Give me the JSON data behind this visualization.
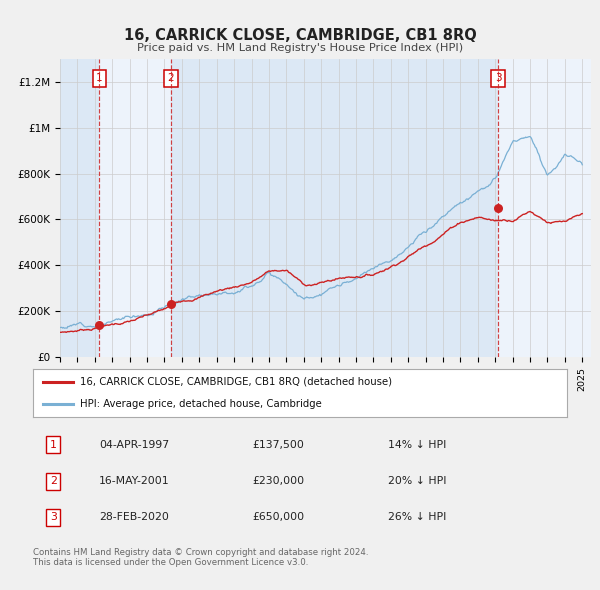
{
  "title": "16, CARRICK CLOSE, CAMBRIDGE, CB1 8RQ",
  "subtitle": "Price paid vs. HM Land Registry's House Price Index (HPI)",
  "hpi_color": "#7ab0d4",
  "price_color": "#cc2222",
  "xmin": 1995.0,
  "xmax": 2025.5,
  "ymin": 0,
  "ymax": 1300000,
  "yticks": [
    0,
    200000,
    400000,
    600000,
    800000,
    1000000,
    1200000
  ],
  "ytick_labels": [
    "£0",
    "£200K",
    "£400K",
    "£600K",
    "£800K",
    "£1M",
    "£1.2M"
  ],
  "transactions": [
    {
      "num": 1,
      "date_x": 1997.26,
      "price": 137500,
      "label": "1"
    },
    {
      "num": 2,
      "date_x": 2001.37,
      "price": 230000,
      "label": "2"
    },
    {
      "num": 3,
      "date_x": 2020.16,
      "price": 650000,
      "label": "3"
    }
  ],
  "table_rows": [
    {
      "num": 1,
      "date": "04-APR-1997",
      "price": "£137,500",
      "hpi_note": "14% ↓ HPI"
    },
    {
      "num": 2,
      "date": "16-MAY-2001",
      "price": "£230,000",
      "hpi_note": "20% ↓ HPI"
    },
    {
      "num": 3,
      "date": "28-FEB-2020",
      "price": "£650,000",
      "hpi_note": "26% ↓ HPI"
    }
  ],
  "legend_line1": "16, CARRICK CLOSE, CAMBRIDGE, CB1 8RQ (detached house)",
  "legend_line2": "HPI: Average price, detached house, Cambridge",
  "footer": "Contains HM Land Registry data © Crown copyright and database right 2024.\nThis data is licensed under the Open Government Licence v3.0.",
  "shaded_regions": [
    [
      1995.0,
      1997.26
    ],
    [
      1997.26,
      2001.37
    ],
    [
      2001.37,
      2020.16
    ],
    [
      2020.16,
      2025.5
    ]
  ],
  "shade_colors": [
    "#dce8f5",
    "#edf3fb",
    "#dce8f5",
    "#edf3fb"
  ],
  "hpi_anchors_x": [
    1995,
    1996,
    1997,
    1998,
    1999,
    2000,
    2001,
    2002,
    2003,
    2004,
    2005,
    2006,
    2007,
    2008,
    2009,
    2010,
    2011,
    2012,
    2013,
    2014,
    2015,
    2016,
    2017,
    2018,
    2019,
    2020,
    2021,
    2022,
    2023,
    2024,
    2025
  ],
  "hpi_anchors_y": [
    128000,
    142000,
    158000,
    175000,
    195000,
    220000,
    255000,
    290000,
    315000,
    340000,
    365000,
    400000,
    460000,
    430000,
    365000,
    390000,
    415000,
    430000,
    460000,
    510000,
    570000,
    630000,
    700000,
    760000,
    820000,
    860000,
    1020000,
    1030000,
    870000,
    960000,
    930000
  ],
  "pp_anchors_x": [
    1995,
    1996,
    1997,
    1998,
    1999,
    2000,
    2001,
    2002,
    2003,
    2004,
    2005,
    2006,
    2007,
    2008,
    2009,
    2010,
    2011,
    2012,
    2013,
    2014,
    2015,
    2016,
    2017,
    2018,
    2019,
    2020,
    2021,
    2022,
    2023,
    2024,
    2025
  ],
  "pp_anchors_y": [
    105000,
    115000,
    130000,
    148000,
    162000,
    182000,
    205000,
    245000,
    268000,
    295000,
    315000,
    340000,
    385000,
    390000,
    325000,
    335000,
    355000,
    368000,
    380000,
    420000,
    470000,
    520000,
    580000,
    635000,
    660000,
    645000,
    655000,
    700000,
    660000,
    655000,
    675000
  ]
}
